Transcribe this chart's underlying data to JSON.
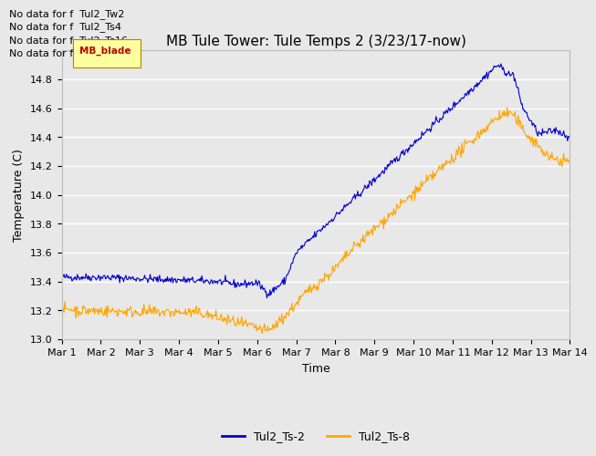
{
  "title": "MB Tule Tower: Tule Temps 2 (3/23/17-now)",
  "xlabel": "Time",
  "ylabel": "Temperature (C)",
  "ylim": [
    13.0,
    15.0
  ],
  "yticks": [
    13.0,
    13.2,
    13.4,
    13.6,
    13.8,
    14.0,
    14.2,
    14.4,
    14.6,
    14.8
  ],
  "xtick_labels": [
    "Mar 1",
    "Mar 2",
    "Mar 3",
    "Mar 4",
    "Mar 5",
    "Mar 6",
    "Mar 7",
    "Mar 8",
    "Mar 9",
    "Mar 10",
    "Mar 11",
    "Mar 12",
    "Mar 13",
    "Mar 14"
  ],
  "line1_color": "#0000CC",
  "line2_color": "#FFA500",
  "line1_label": "Tul2_Ts-2",
  "line2_label": "Tul2_Ts-8",
  "nodata_lines": [
    "No data for f  Tul2_Tw2",
    "No data for f  Tul2_Ts4",
    "No data for f  Tul2_Ts16",
    "No data for f  Tul2_Ts32"
  ],
  "nodata_color": "black",
  "nodata_fontsize": 8,
  "bg_color": "#E8E8E8",
  "plot_bg_color": "#E8E8E8",
  "title_fontsize": 11,
  "axis_label_fontsize": 9,
  "tick_fontsize": 8,
  "legend_fontsize": 9
}
